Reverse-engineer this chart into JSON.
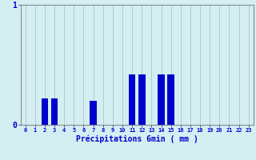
{
  "xlabel": "Précipitations 6min ( mm )",
  "background_color": "#d4eef2",
  "bar_color": "#0000cc",
  "grid_color": "#aac8cc",
  "axis_color": "#888888",
  "text_color": "#0000cc",
  "ylim": [
    0,
    1.0
  ],
  "xlim": [
    -0.5,
    23.5
  ],
  "yticks": [
    0,
    1
  ],
  "xticks": [
    0,
    1,
    2,
    3,
    4,
    5,
    6,
    7,
    8,
    9,
    10,
    11,
    12,
    13,
    14,
    15,
    16,
    17,
    18,
    19,
    20,
    21,
    22,
    23
  ],
  "hours": [
    0,
    1,
    2,
    3,
    4,
    5,
    6,
    7,
    8,
    9,
    10,
    11,
    12,
    13,
    14,
    15,
    16,
    17,
    18,
    19,
    20,
    21,
    22,
    23
  ],
  "values": [
    0,
    0,
    0.22,
    0.22,
    0,
    0,
    0,
    0.2,
    0,
    0,
    0,
    0.42,
    0.42,
    0,
    0.42,
    0.42,
    0,
    0,
    0,
    0,
    0,
    0,
    0,
    0
  ],
  "bar_width": 0.7
}
